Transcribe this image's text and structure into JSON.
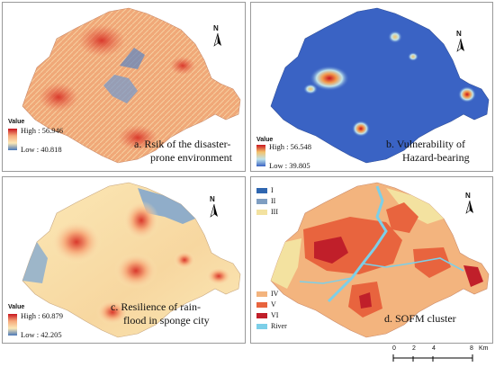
{
  "legend_title": "Value",
  "panels": {
    "a": {
      "high": "High : 56.946",
      "low": "Low : 40.818",
      "caption_line1": "a.  Rsik of the disaster-",
      "caption_line2": "prone environment",
      "ramp_colors": [
        "#c8141e",
        "#f6a97a",
        "#fbe8b6",
        "#4a78b8"
      ]
    },
    "b": {
      "high": "High : 56.548",
      "low": "Low : 39.805",
      "caption_line1": "b.  Vulnerability of",
      "caption_line2": "Hazard-bearing",
      "ramp_colors": [
        "#c8141e",
        "#f3c26a",
        "#bfe3ea",
        "#3a63c4"
      ]
    },
    "c": {
      "high": "High : 60.879",
      "low": "Low : 42.205",
      "caption_line1": "c.  Resilience of  rain-",
      "caption_line2": "flood in sponge city",
      "ramp_colors": [
        "#c8141e",
        "#f6a97a",
        "#fbe8b6",
        "#4a78b8"
      ]
    },
    "d": {
      "caption": "d.  SOFM cluster",
      "classes_top": [
        {
          "label": "I",
          "color": "#2f66b0"
        },
        {
          "label": "II",
          "color": "#7f9ec2"
        },
        {
          "label": "III",
          "color": "#f3e2a0"
        }
      ],
      "classes_bottom": [
        {
          "label": "IV",
          "color": "#f3b47e"
        },
        {
          "label": "V",
          "color": "#e8643e"
        },
        {
          "label": "VI",
          "color": "#c01f2a"
        },
        {
          "label": "River",
          "color": "#7ccfe8"
        }
      ]
    }
  },
  "north_letter": "N",
  "scale_bar": {
    "ticks": [
      "0",
      "2",
      "4",
      "8"
    ],
    "unit": "Km"
  }
}
